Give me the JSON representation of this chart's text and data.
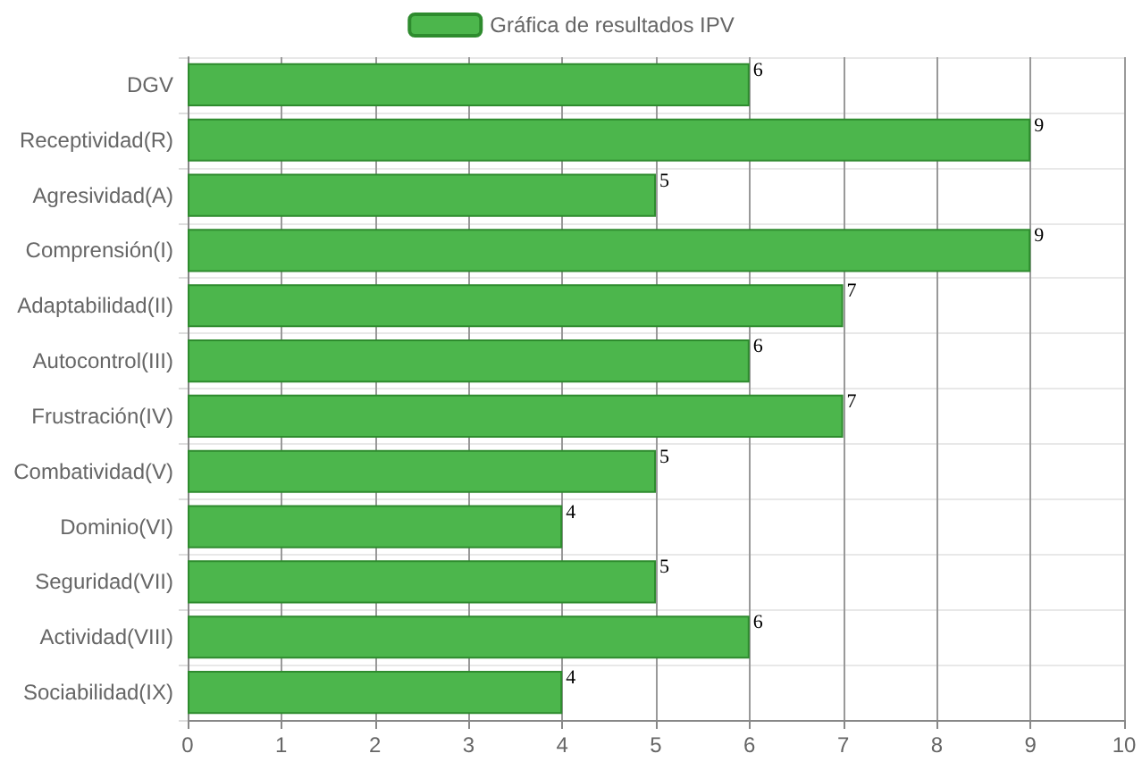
{
  "chart_data": {
    "type": "bar",
    "orientation": "horizontal",
    "categories": [
      "DGV",
      "Receptividad(R)",
      "Agresividad(A)",
      "Comprensión(I)",
      "Adaptabilidad(II)",
      "Autocontrol(III)",
      "Frustración(IV)",
      "Combatividad(V)",
      "Dominio(VI)",
      "Seguridad(VII)",
      "Actividad(VIII)",
      "Sociabilidad(IX)"
    ],
    "series": [
      {
        "name": "Gráfica de resultados IPV",
        "color": "#4cb64c",
        "values": [
          6,
          9,
          5,
          9,
          7,
          6,
          7,
          5,
          4,
          5,
          6,
          4
        ]
      }
    ],
    "xlim": [
      0,
      10
    ],
    "xticks": [
      0,
      1,
      2,
      3,
      4,
      5,
      6,
      7,
      8,
      9,
      10
    ],
    "grid": true,
    "legend": "top",
    "data_labels": true
  }
}
